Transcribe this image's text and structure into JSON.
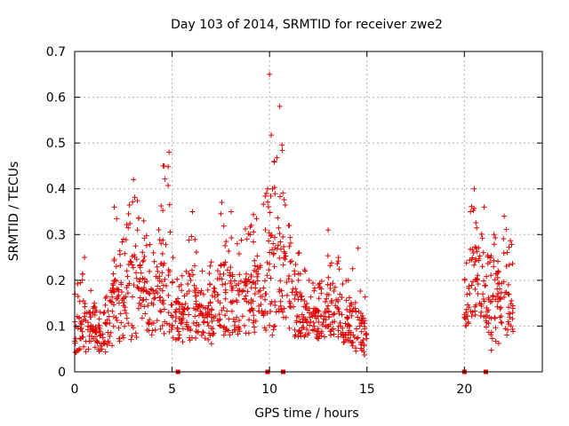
{
  "chart_data": {
    "type": "scatter",
    "title": "Day 103 of 2014, SRMTID for receiver zwe2",
    "xlabel": "GPS time / hours",
    "ylabel": "SRMTID / TECUs",
    "xlim": [
      0,
      24
    ],
    "ylim": [
      0,
      0.7
    ],
    "xticks": [
      0,
      5,
      10,
      15,
      20
    ],
    "yticks": [
      0,
      0.1,
      0.2,
      0.3,
      0.4,
      0.5,
      0.6,
      0.7
    ],
    "xtick_labels": [
      "0",
      "5",
      "10",
      "15",
      "20"
    ],
    "ytick_labels": [
      "0",
      "0.1",
      "0.2",
      "0.3",
      "0.4",
      "0.5",
      "0.6",
      "0.7"
    ],
    "grid": true,
    "marker": "+",
    "color": "#e00000",
    "series": [
      {
        "name": "SRMTID",
        "envelope_hours": [
          0,
          0.5,
          1,
          1.5,
          2,
          2.5,
          3,
          3.5,
          4,
          4.5,
          4.8,
          5,
          5.5,
          6,
          6.5,
          7,
          7.5,
          8,
          8.3,
          9.9,
          10,
          10.2,
          10.5,
          11,
          11.5,
          12,
          12.5,
          13,
          13.5,
          14,
          14.5,
          15,
          20,
          20.3,
          20.5,
          21,
          21.3,
          21.5,
          22,
          22.5
        ],
        "envelope_low": [
          0.04,
          0.04,
          0.05,
          0.04,
          0.06,
          0.07,
          0.07,
          0.08,
          0.08,
          0.08,
          0.09,
          0.07,
          0.06,
          0.07,
          0.07,
          0.06,
          0.08,
          0.08,
          0.08,
          0.09,
          0.08,
          0.07,
          0.09,
          0.08,
          0.07,
          0.08,
          0.07,
          0.08,
          0.07,
          0.06,
          0.04,
          0.03,
          0.09,
          0.11,
          0.12,
          0.12,
          0.05,
          0.04,
          0.08,
          0.07
        ],
        "envelope_high": [
          0.17,
          0.25,
          0.15,
          0.13,
          0.36,
          0.29,
          0.42,
          0.33,
          0.26,
          0.45,
          0.48,
          0.25,
          0.21,
          0.35,
          0.22,
          0.24,
          0.37,
          0.35,
          0.28,
          0.4,
          0.65,
          0.46,
          0.58,
          0.32,
          0.26,
          0.2,
          0.19,
          0.31,
          0.25,
          0.2,
          0.27,
          0.14,
          0.2,
          0.35,
          0.4,
          0.36,
          0.24,
          0.3,
          0.34,
          0.27
        ],
        "zero_points_hours": [
          5.3,
          9.9,
          10.7,
          20.0,
          21.1
        ]
      }
    ]
  }
}
